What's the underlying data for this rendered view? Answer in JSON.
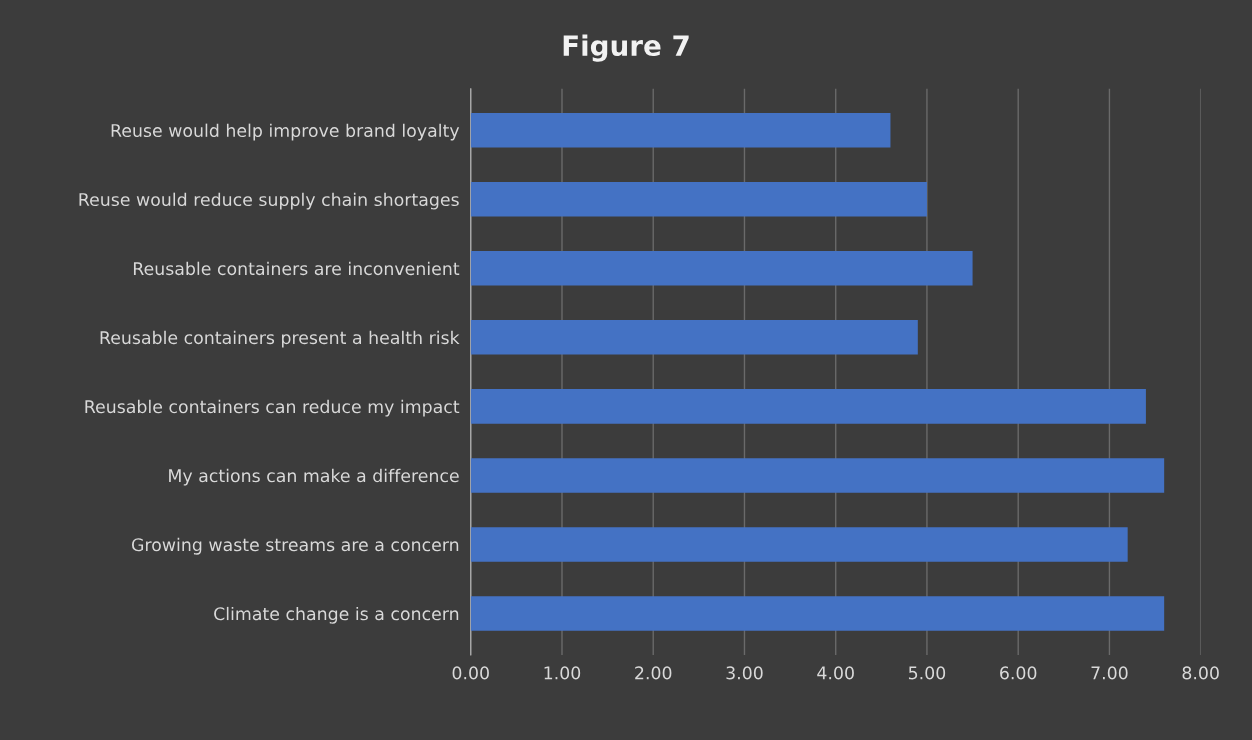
{
  "chart_data": {
    "type": "bar",
    "orientation": "horizontal",
    "title": "Figure 7",
    "categories": [
      "Reuse would help improve brand loyalty",
      "Reuse would reduce supply chain shortages",
      "Reusable containers are inconvenient",
      "Reusable containers present a health risk",
      "Reusable containers can reduce my impact",
      "My actions can make a difference",
      "Growing waste streams are a concern",
      "Climate change is a concern"
    ],
    "values": [
      4.6,
      5.0,
      5.5,
      4.9,
      7.4,
      7.6,
      7.2,
      7.6
    ],
    "color": "#4472c4",
    "xlim": [
      0,
      8
    ],
    "xticks": [
      {
        "value": 0,
        "label": "0.00"
      },
      {
        "value": 1,
        "label": "1.00"
      },
      {
        "value": 2,
        "label": "2.00"
      },
      {
        "value": 3,
        "label": "3.00"
      },
      {
        "value": 4,
        "label": "4.00"
      },
      {
        "value": 5,
        "label": "5.00"
      },
      {
        "value": 6,
        "label": "6.00"
      },
      {
        "value": 7,
        "label": "7.00"
      },
      {
        "value": 8,
        "label": "8.00"
      }
    ],
    "grid": "x",
    "legend": false
  }
}
